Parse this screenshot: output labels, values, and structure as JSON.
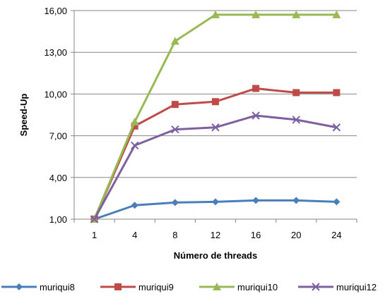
{
  "chart_data": {
    "type": "line",
    "title": "",
    "xlabel": "Número de threads",
    "ylabel": "Speed-Up",
    "categories": [
      "1",
      "4",
      "8",
      "12",
      "16",
      "20",
      "24"
    ],
    "y_ticks": [
      "1,00",
      "4,00",
      "7,00",
      "10,00",
      "13,00",
      "16,00"
    ],
    "ylim": [
      1,
      16
    ],
    "grid": true,
    "legend_position": "bottom",
    "series": [
      {
        "name": "muriqui8",
        "color": "#4a7ebb",
        "marker": "diamond",
        "values": [
          1.0,
          2.0,
          2.2,
          2.25,
          2.35,
          2.35,
          2.25
        ]
      },
      {
        "name": "muriqui9",
        "color": "#be4b48",
        "marker": "square",
        "values": [
          1.0,
          7.7,
          9.25,
          9.45,
          10.4,
          10.1,
          10.1
        ]
      },
      {
        "name": "muriqui10",
        "color": "#98b954",
        "marker": "triangle",
        "values": [
          1.0,
          8.0,
          13.8,
          15.7,
          15.7,
          15.7,
          15.7
        ]
      },
      {
        "name": "muriqui12",
        "color": "#7d60a0",
        "marker": "x",
        "values": [
          1.0,
          6.3,
          7.45,
          7.6,
          8.45,
          8.15,
          7.6
        ]
      }
    ]
  }
}
